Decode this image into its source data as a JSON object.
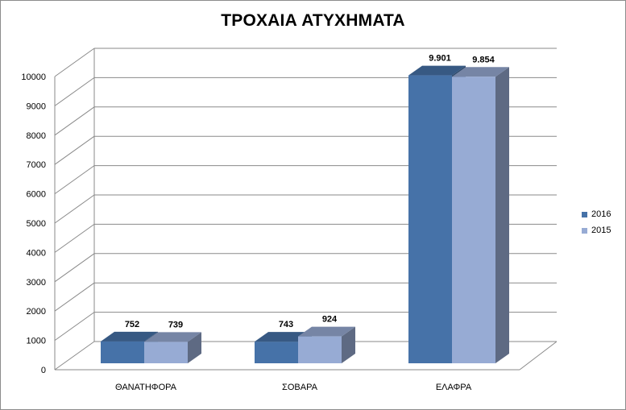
{
  "chart_data": {
    "type": "bar",
    "title": "ΤΡΟΧΑΙΑ ΑΤΥΧΗΜΑΤΑ",
    "categories": [
      "ΘΑΝΑΤΗΦΟΡΑ",
      "ΣΟΒΑΡΑ",
      "ΕΛΑΦΡΑ"
    ],
    "series": [
      {
        "name": "2016",
        "values": [
          752,
          743,
          9901
        ],
        "labels": [
          "752",
          "743",
          "9.901"
        ],
        "color": "#4672a8"
      },
      {
        "name": "2015",
        "values": [
          739,
          924,
          9854
        ],
        "labels": [
          "739",
          "924",
          "9.854"
        ],
        "color": "#97abd4"
      }
    ],
    "ylim": [
      0,
      10000
    ],
    "yticks": [
      "0",
      "1000",
      "2000",
      "3000",
      "4000",
      "5000",
      "6000",
      "7000",
      "8000",
      "9000",
      "10000"
    ],
    "grid": true,
    "three_d": true,
    "legend_position": "right"
  }
}
